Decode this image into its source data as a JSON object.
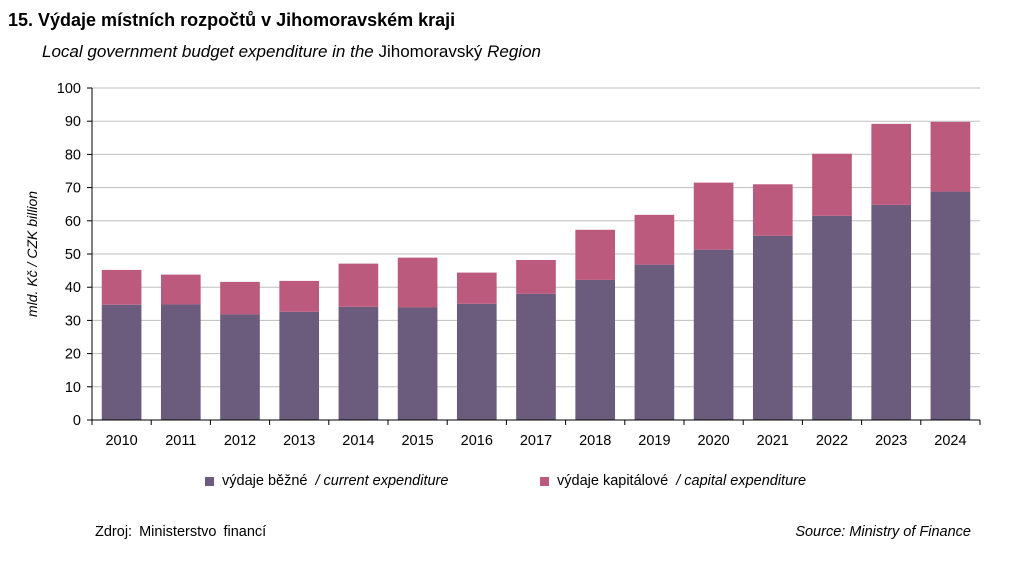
{
  "title": "15. Výdaje místních rozpočtů v Jihomoravském kraji",
  "subtitle": {
    "part1": "Local government budget expenditure in the",
    "part2": "Jihomoravský",
    "part3": "Region"
  },
  "legend": {
    "current": {
      "cz": "výdaje běžné",
      "en": "/ current expenditure"
    },
    "capital": {
      "cz": "výdaje kapitálové",
      "en": "/ capital expenditure"
    }
  },
  "source_left": "Zdroj: Ministerstvo financí",
  "source_right": "Source: Ministry of Finance",
  "colors": {
    "current": "#6b5c7e",
    "capital": "#bc5a7d",
    "grid": "#bfbfbf",
    "axis": "#000000"
  },
  "chart_data": {
    "type": "bar",
    "stacked": true,
    "title": "15. Výdaje místních rozpočtů v Jihomoravském kraji",
    "ylabel": "mld. Kč / CZK billion",
    "xlabel": "",
    "ylim": [
      0,
      100
    ],
    "yticks": [
      0,
      10,
      20,
      30,
      40,
      50,
      60,
      70,
      80,
      90,
      100
    ],
    "grid": true,
    "legend_position": "bottom",
    "categories": [
      "2010",
      "2011",
      "2012",
      "2013",
      "2014",
      "2015",
      "2016",
      "2017",
      "2018",
      "2019",
      "2020",
      "2021",
      "2022",
      "2023",
      "2024"
    ],
    "series": [
      {
        "name": "výdaje běžné / current expenditure",
        "key": "current",
        "values": [
          34.7,
          34.8,
          31.8,
          32.6,
          34.1,
          33.9,
          35.0,
          38.0,
          42.2,
          46.8,
          51.3,
          55.5,
          61.5,
          64.8,
          68.8
        ]
      },
      {
        "name": "výdaje kapitálové / capital expenditure",
        "key": "capital",
        "values": [
          10.5,
          9.0,
          9.8,
          9.3,
          13.0,
          15.0,
          9.4,
          10.2,
          15.1,
          15.0,
          20.2,
          15.5,
          18.7,
          24.4,
          21.0
        ]
      }
    ]
  }
}
